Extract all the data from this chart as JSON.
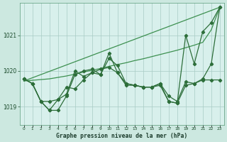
{
  "background_color": "#cce8e0",
  "plot_bg_color": "#d8f0ec",
  "grid_color": "#a8ccc4",
  "line_color_dark": "#2d6e3a",
  "line_color_light": "#3d9050",
  "xlabel": "Graphe pression niveau de la mer (hPa)",
  "ylim": [
    1018.5,
    1021.9
  ],
  "xlim": [
    -0.5,
    23.5
  ],
  "yticks": [
    1019,
    1020,
    1021
  ],
  "xticks": [
    0,
    1,
    2,
    3,
    4,
    5,
    6,
    7,
    8,
    9,
    10,
    11,
    12,
    13,
    14,
    15,
    16,
    17,
    18,
    19,
    20,
    21,
    22,
    23
  ],
  "trend_x": [
    0,
    23
  ],
  "trend_y": [
    1019.72,
    1021.78
  ],
  "smooth_x": [
    0,
    1,
    2,
    3,
    4,
    5,
    6,
    7,
    8,
    9,
    10,
    11,
    12,
    13,
    14,
    15,
    16,
    17,
    18,
    19,
    20,
    21,
    22,
    23
  ],
  "smooth_y": [
    1019.72,
    1019.74,
    1019.76,
    1019.78,
    1019.82,
    1019.86,
    1019.91,
    1019.97,
    1020.02,
    1020.07,
    1020.13,
    1020.18,
    1020.23,
    1020.29,
    1020.34,
    1020.4,
    1020.46,
    1020.52,
    1020.58,
    1020.65,
    1020.72,
    1020.8,
    1021.15,
    1021.78
  ],
  "series_volatile1_x": [
    0,
    1,
    2,
    3,
    4,
    5,
    6,
    7,
    8,
    9,
    10,
    11,
    12,
    13,
    14,
    15,
    16,
    17,
    18,
    19,
    20,
    21,
    22,
    23
  ],
  "series_volatile1_y": [
    1019.78,
    1019.65,
    1019.15,
    1018.9,
    1018.9,
    1019.3,
    1019.9,
    1020.0,
    1020.05,
    1019.9,
    1020.35,
    1020.15,
    1019.65,
    1019.6,
    1019.55,
    1019.55,
    1019.6,
    1019.15,
    1019.1,
    1019.6,
    1019.65,
    1019.75,
    1019.75,
    1019.75
  ],
  "series_volatile2_x": [
    0,
    1,
    2,
    3,
    4,
    5,
    6,
    7,
    8,
    9,
    10,
    11,
    12,
    13,
    14,
    15,
    16,
    17,
    18,
    19,
    20,
    21,
    22,
    23
  ],
  "series_volatile2_y": [
    1019.78,
    1019.65,
    1019.15,
    1019.15,
    1019.2,
    1019.35,
    1020.0,
    1019.85,
    1019.95,
    1020.05,
    1020.1,
    1019.95,
    1019.65,
    1019.6,
    1019.55,
    1019.55,
    1019.65,
    1019.3,
    1019.15,
    1019.7,
    1019.65,
    1019.78,
    1020.2,
    1021.78
  ],
  "series_spike_x": [
    0,
    1,
    2,
    3,
    4,
    5,
    6,
    7,
    8,
    9,
    10,
    11,
    12,
    13,
    14,
    15,
    16,
    17,
    18,
    19,
    20,
    21,
    22,
    23
  ],
  "series_spike_y": [
    1019.78,
    1019.65,
    1019.15,
    1018.9,
    1019.2,
    1019.55,
    1019.5,
    1019.75,
    1019.95,
    1019.9,
    1020.5,
    1019.95,
    1019.6,
    1019.6,
    1019.55,
    1019.55,
    1019.65,
    1019.15,
    1019.1,
    1021.0,
    1020.2,
    1021.1,
    1021.35,
    1021.78
  ]
}
